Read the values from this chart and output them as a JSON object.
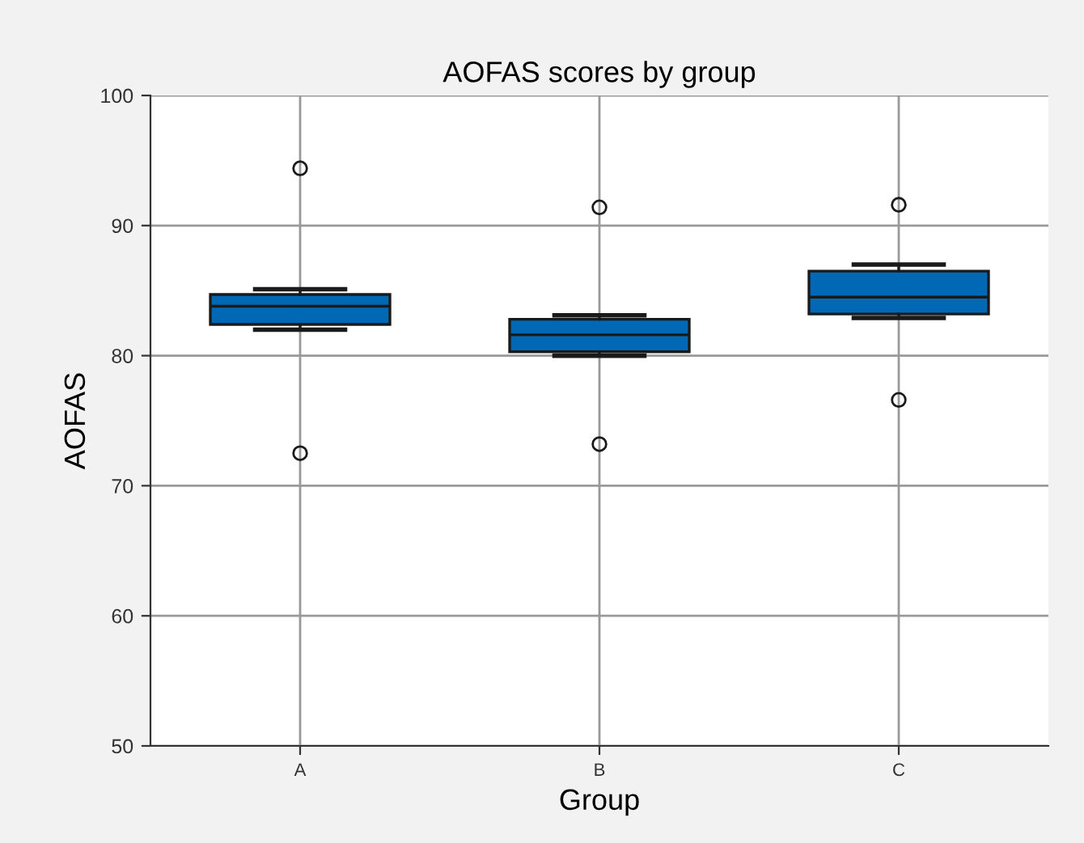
{
  "chart_data": {
    "type": "box",
    "title": "AOFAS scores by group",
    "xlabel": "Group",
    "ylabel": "AOFAS",
    "categories": [
      "A",
      "B",
      "C"
    ],
    "boxes": [
      {
        "low": 82.0,
        "q1": 82.4,
        "median": 83.8,
        "q3": 84.7,
        "high": 85.1,
        "outliers": [
          94.4,
          72.5
        ]
      },
      {
        "low": 80.0,
        "q1": 80.3,
        "median": 81.6,
        "q3": 82.8,
        "high": 83.1,
        "outliers": [
          91.4,
          73.2
        ]
      },
      {
        "low": 82.9,
        "q1": 83.2,
        "median": 84.5,
        "q3": 86.5,
        "high": 87.0,
        "outliers": [
          91.6,
          76.6
        ]
      }
    ],
    "color": "#0068b4",
    "ylim": [
      50,
      100
    ],
    "yticks": [
      50,
      60,
      70,
      80,
      90,
      100
    ],
    "grid": true
  }
}
